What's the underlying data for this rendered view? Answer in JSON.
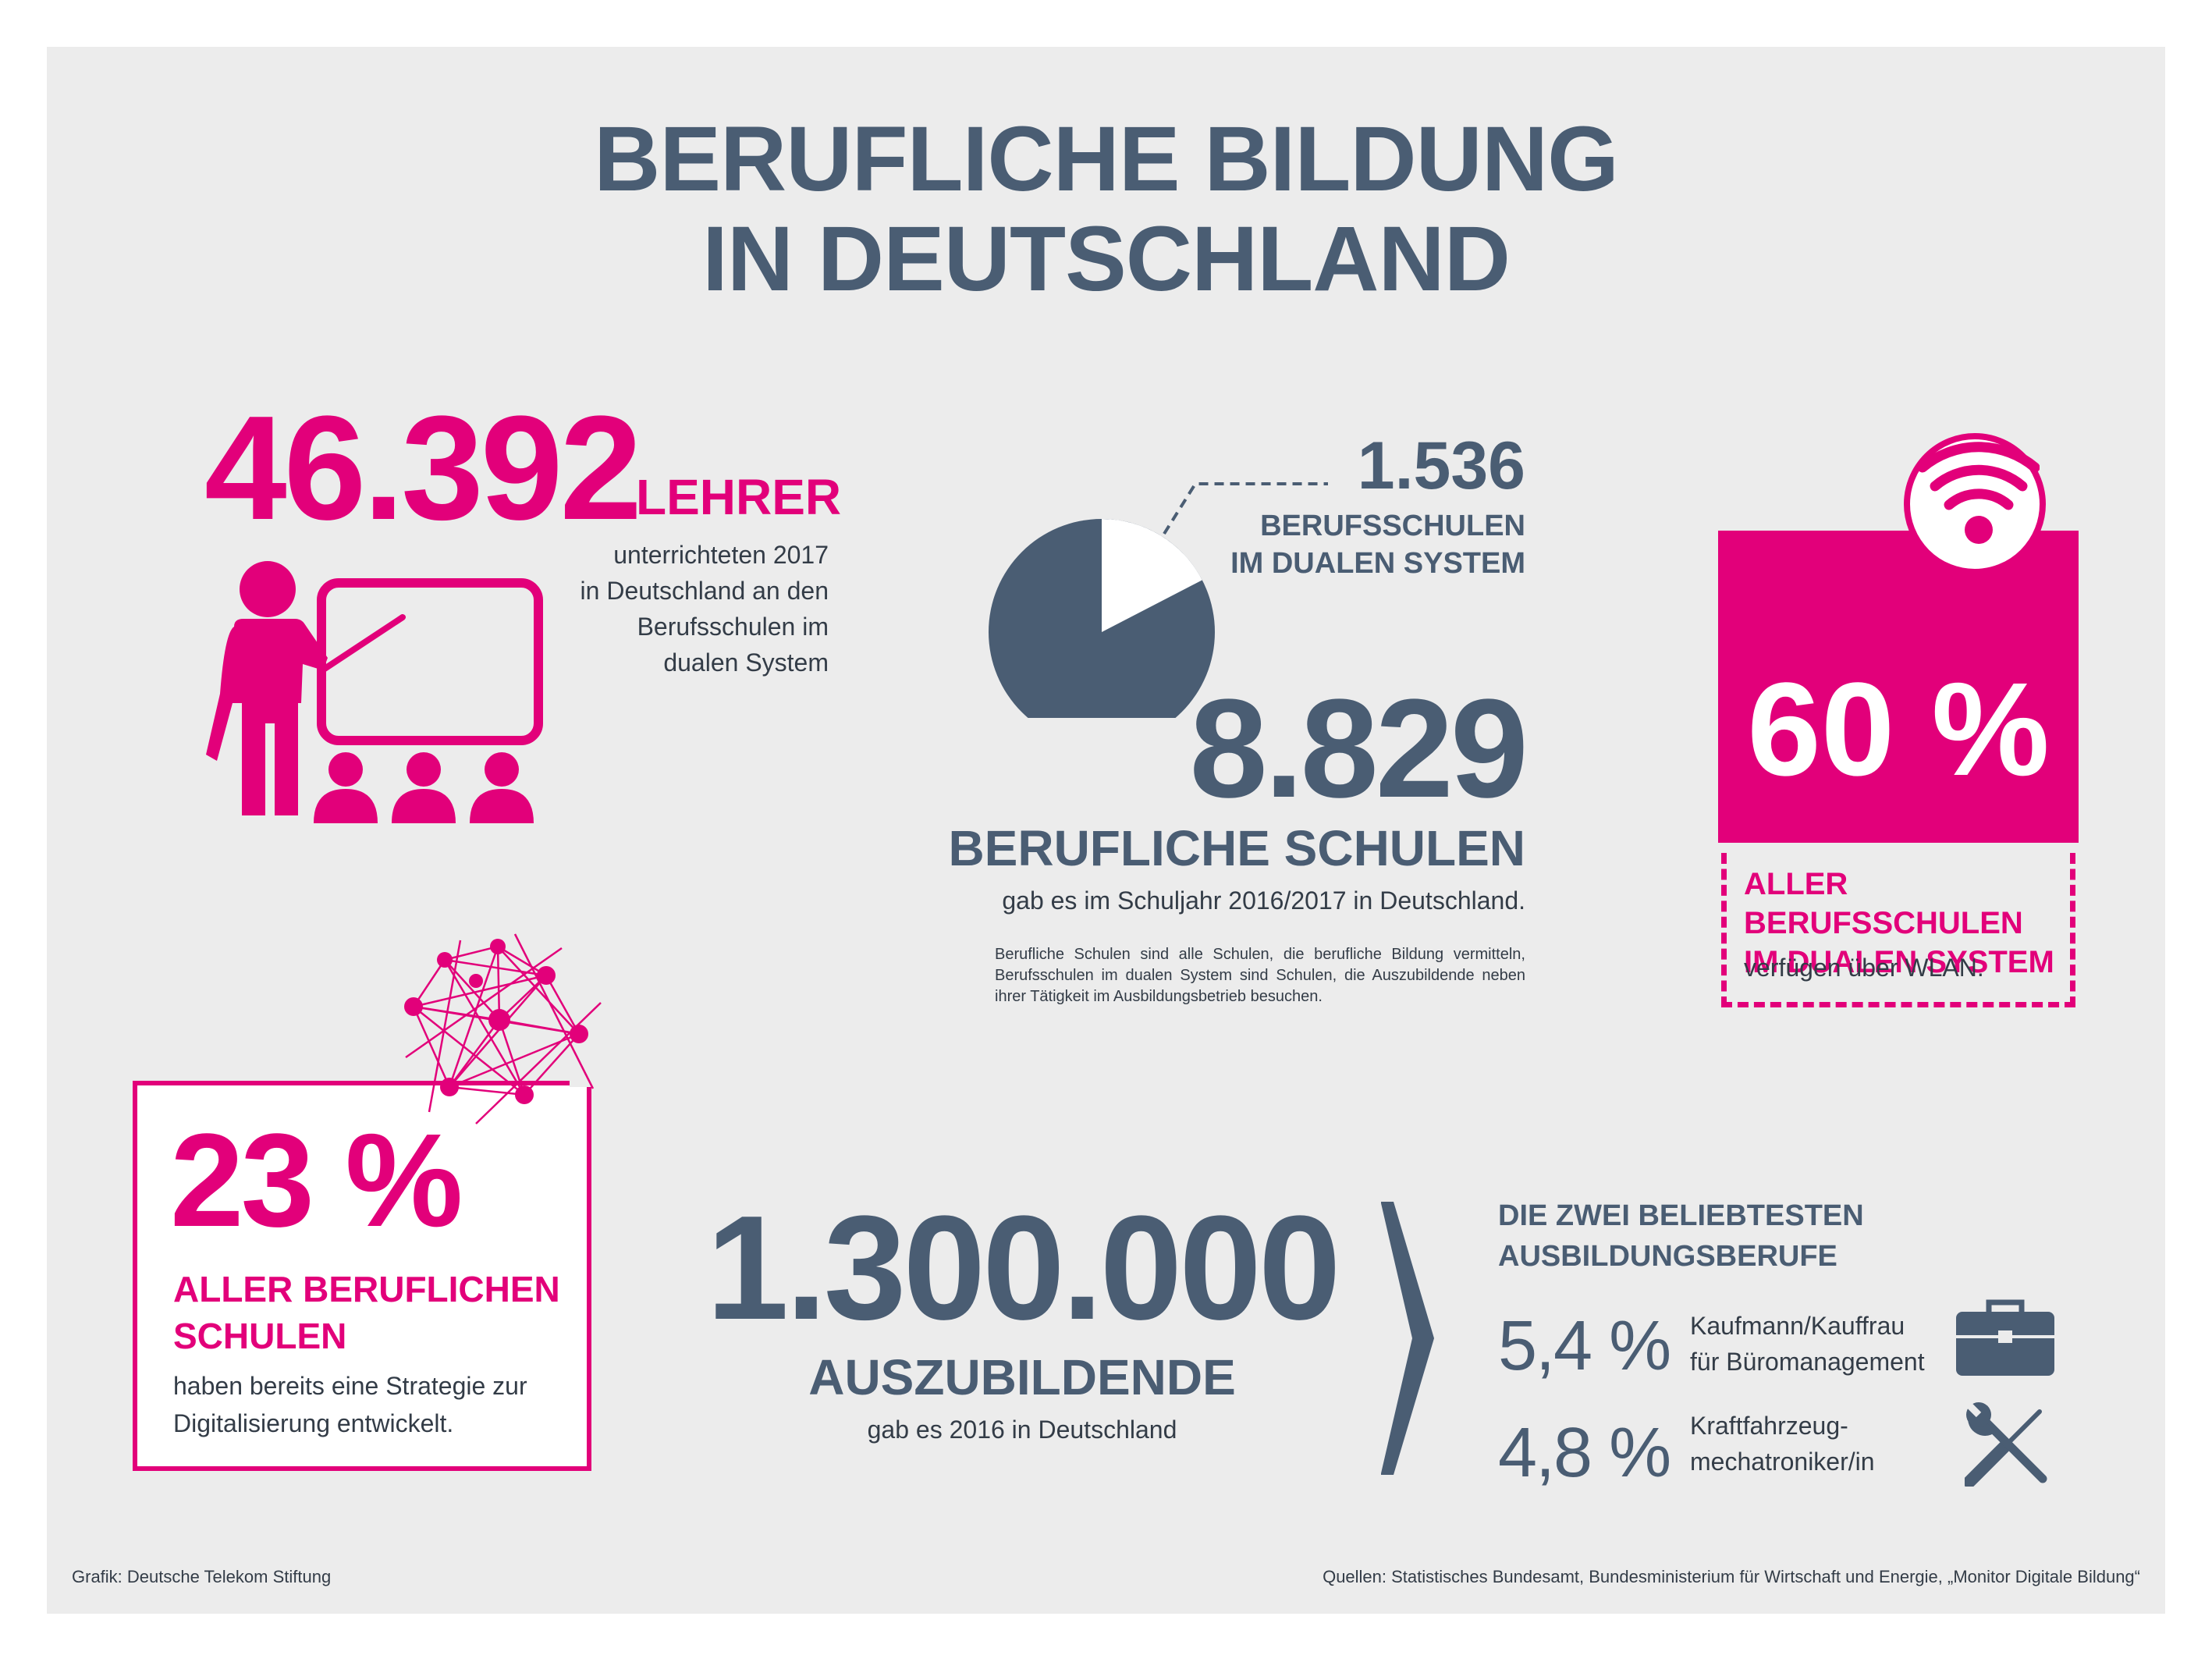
{
  "title": {
    "line1": "BERUFLICHE BILDUNG",
    "line2": "IN DEUTSCHLAND"
  },
  "teachers": {
    "number": "46.392",
    "label": "LEHRER",
    "desc": [
      "unterrichteten 2017",
      "in Deutschland an den",
      "Berufsschulen im",
      "dualen System"
    ]
  },
  "schools": {
    "dual_number": "1.536",
    "dual_label": [
      "BERUFSSCHULEN",
      "IM DUALEN SYSTEM"
    ],
    "total_number": "8.829",
    "total_label": "BERUFLICHE SCHULEN",
    "total_desc": "gab es im Schuljahr 2016/2017 in Deutschland.",
    "note": "Berufliche Schulen sind alle Schulen, die berufliche Bildung vermitteln, Berufsschulen im dualen System sind Schulen, die Auszubildende neben ihrer Tätigkeit im Ausbildungsbetrieb besuchen.",
    "pie": {
      "part": 1536,
      "total": 8829
    }
  },
  "wlan": {
    "percent": "60 %",
    "label": [
      "ALLER BERUFSSCHULEN",
      "IM DUALEN SYSTEM"
    ],
    "desc": "verfügen über WLAN."
  },
  "digital": {
    "percent": "23 %",
    "label": [
      "ALLER BERUFLICHEN",
      "SCHULEN"
    ],
    "desc": [
      "haben bereits eine Strategie zur",
      "Digitalisierung entwickelt."
    ]
  },
  "apprentices": {
    "number": "1.300.000",
    "label": "AUSZUBILDENDE",
    "desc": "gab es 2016 in Deutschland"
  },
  "top_jobs": {
    "title": [
      "DIE ZWEI BELIEBTESTEN",
      "AUSBILDUNGSBERUFE"
    ],
    "jobs": [
      {
        "percent": "5,4 %",
        "name": [
          "Kaufmann/Kauffrau",
          "für Büromanagement"
        ],
        "icon": "briefcase-icon"
      },
      {
        "percent": "4,8 %",
        "name": [
          "Kraftfahrzeug-",
          "mechatroniker/in"
        ],
        "icon": "tools-icon"
      }
    ]
  },
  "footer": {
    "credit": "Grafik: Deutsche Telekom Stiftung",
    "sources": "Quellen: Statistisches Bundesamt, Bundesministerium für Wirtschaft und Energie, „Monitor Digitale Bildung“"
  },
  "colors": {
    "magenta": "#e2007a",
    "slate": "#4a5d73",
    "background": "#ececec"
  }
}
